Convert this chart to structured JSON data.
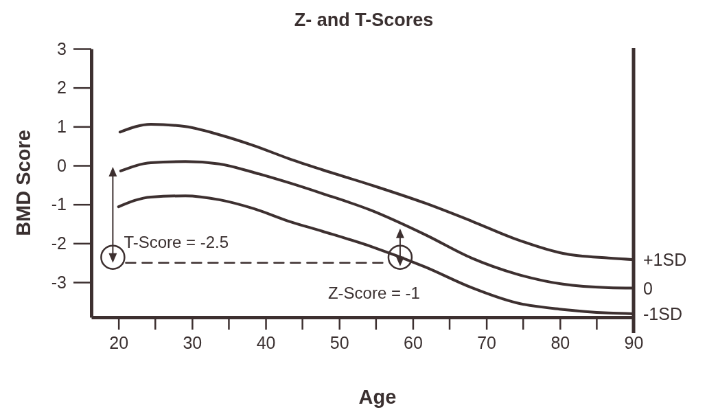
{
  "chart_data": {
    "type": "line",
    "title": "Z- and T-Scores",
    "xlabel": "Age",
    "ylabel": "BMD Score",
    "xlim": [
      16.3,
      90
    ],
    "ylim": [
      -3.9,
      3
    ],
    "xticks": [
      20,
      30,
      40,
      50,
      60,
      70,
      80,
      90
    ],
    "yticks": [
      3,
      2,
      1,
      0,
      -1,
      -2,
      -3
    ],
    "series": [
      {
        "name": "+1SD",
        "color": "#3d3030",
        "x": [
          20.2,
          24.4,
          29.1,
          33.7,
          38.4,
          43.1,
          47.7,
          54.3,
          61.7,
          68,
          74.1,
          80.4,
          86.6,
          90
        ],
        "values": [
          0.86,
          1.06,
          1.0,
          0.79,
          0.51,
          0.18,
          -0.11,
          -0.5,
          -0.97,
          -1.43,
          -1.9,
          -2.26,
          -2.38,
          -2.42
        ]
      },
      {
        "name": "0",
        "color": "#3d3030",
        "x": [
          20.3,
          24.4,
          29.1,
          33.7,
          38.4,
          43.1,
          47.7,
          54.3,
          61.7,
          68,
          74.1,
          80.4,
          86.6,
          90
        ],
        "values": [
          -0.14,
          0.07,
          0.1,
          0.04,
          -0.18,
          -0.44,
          -0.72,
          -1.15,
          -1.78,
          -2.38,
          -2.79,
          -3.05,
          -3.14,
          -3.15
        ]
      },
      {
        "name": "-1SD",
        "color": "#3d3030",
        "x": [
          20,
          24.4,
          29.1,
          33.7,
          38.4,
          43.1,
          47.7,
          54.3,
          61.7,
          68,
          74.1,
          80.4,
          86.6,
          90
        ],
        "values": [
          -1.06,
          -0.81,
          -0.78,
          -0.88,
          -1.11,
          -1.43,
          -1.69,
          -2.08,
          -2.61,
          -3.14,
          -3.53,
          -3.7,
          -3.79,
          -3.81
        ]
      },
      {
        "color": "#3d3030",
        "line_style": "dashed",
        "x": [
          21,
          56.5
        ],
        "values": [
          -2.5,
          -2.5
        ]
      }
    ],
    "annotations": [
      "T-Score = -2.5",
      "Z-Score = -1"
    ]
  }
}
